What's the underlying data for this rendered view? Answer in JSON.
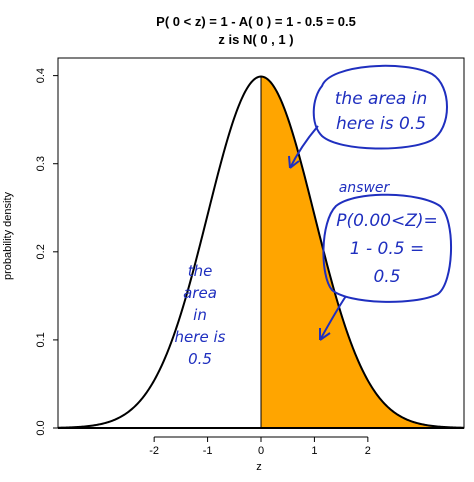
{
  "chart_data": {
    "type": "area",
    "title": "P( 0 < z) = 1 - A( 0 ) =  1  -  0.5  =  0.5",
    "subtitle": "z is N( 0 , 1 )",
    "xlabel": "z",
    "ylabel": "probability density",
    "xlim": [
      -3.8,
      3.8
    ],
    "ylim": [
      0,
      0.42
    ],
    "x_ticks": [
      -2,
      -1,
      0,
      1,
      2
    ],
    "y_ticks": [
      0.0,
      0.1,
      0.2,
      0.3,
      0.4
    ],
    "x_tick_labels": [
      "-2",
      "-1",
      "0",
      "1",
      "2"
    ],
    "y_tick_labels": [
      "0.0",
      "0.1",
      "0.2",
      "0.3",
      "0.4"
    ],
    "curve": {
      "name": "N(0,1) density",
      "mean": 0,
      "sd": 1,
      "color": "#000000"
    },
    "shaded_region": {
      "from": 0,
      "to": 3.3,
      "color": "#ffa500"
    },
    "annotations": [
      {
        "id": "area-right",
        "lines": [
          "the area in",
          "here is 0.5"
        ]
      },
      {
        "id": "answer-label",
        "lines": [
          "answer"
        ]
      },
      {
        "id": "answer-box",
        "lines": [
          "P(0.00<Z)=",
          "1 - 0.5 =",
          "0.5"
        ]
      },
      {
        "id": "area-left",
        "lines": [
          "the",
          "area",
          "in",
          "here is",
          "0.5"
        ]
      }
    ],
    "grid": false,
    "legend": "none"
  }
}
